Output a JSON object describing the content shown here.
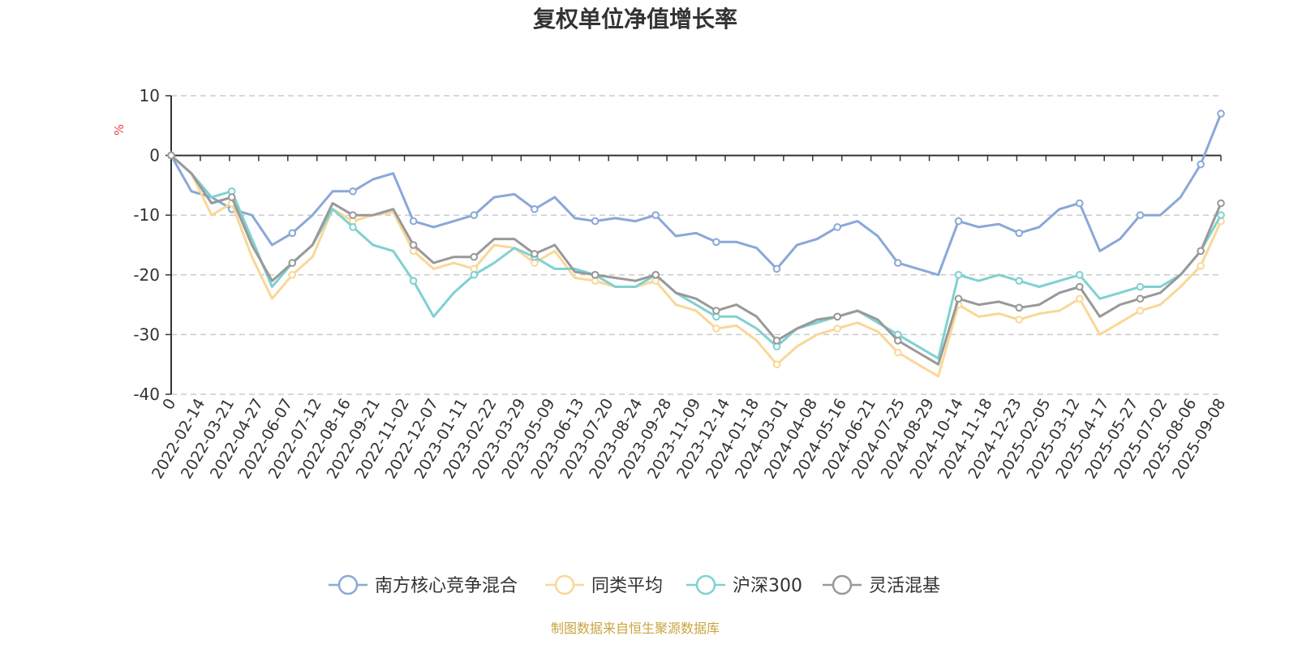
{
  "chart_data": {
    "type": "line",
    "title": "复权单位净值增长率",
    "y_unit": "%",
    "ylim": [
      -40,
      10
    ],
    "y_ticks": [
      10,
      0,
      -10,
      -20,
      -30,
      -40
    ],
    "grid": "horizontal-dashed",
    "legend_position": "bottom",
    "x_origin_label": "0",
    "x_ticks": [
      "2022-02-14",
      "2022-03-21",
      "2022-04-27",
      "2022-06-07",
      "2022-07-12",
      "2022-08-16",
      "2022-09-21",
      "2022-11-02",
      "2022-12-07",
      "2023-01-11",
      "2023-02-22",
      "2023-03-29",
      "2023-05-09",
      "2023-06-13",
      "2023-07-20",
      "2023-08-24",
      "2023-09-28",
      "2023-11-09",
      "2023-12-14",
      "2024-01-18",
      "2024-03-01",
      "2024-04-08",
      "2024-05-16",
      "2024-06-21",
      "2024-07-25",
      "2024-08-29",
      "2024-10-14",
      "2024-11-18",
      "2024-12-23",
      "2025-02-05",
      "2025-03-12",
      "2025-04-17",
      "2025-05-27",
      "2025-07-02",
      "2025-08-06",
      "2025-09-08"
    ],
    "series": [
      {
        "name": "南方核心竞争混合",
        "color": "#8aa8d8",
        "values": [
          0,
          -6,
          -7,
          -9,
          -10,
          -15,
          -13,
          -10,
          -6,
          -6,
          -4,
          -3,
          -11,
          -12,
          -11,
          -10,
          -7,
          -6.5,
          -9,
          -7,
          -10.5,
          -11,
          -10.5,
          -11,
          -10,
          -13.5,
          -13,
          -14.5,
          -14.5,
          -15.5,
          -19,
          -15,
          -14,
          -12,
          -11,
          -13.5,
          -18,
          -19,
          -20,
          -11,
          -12,
          -11.5,
          -13,
          -12,
          -9,
          -8,
          -16,
          -14,
          -10,
          -10,
          -7,
          -1.5,
          7
        ]
      },
      {
        "name": "同类平均",
        "color": "#fad797",
        "values": [
          0,
          -3,
          -10,
          -8,
          -17,
          -24,
          -20,
          -17,
          -9,
          -11,
          -10,
          -9.5,
          -16,
          -19,
          -18,
          -19,
          -15,
          -15.5,
          -18,
          -16,
          -20.5,
          -21,
          -22,
          -22,
          -21,
          -25,
          -26,
          -29,
          -28.5,
          -31,
          -35,
          -32,
          -30,
          -29,
          -28,
          -29.5,
          -33,
          -35,
          -37,
          -25,
          -27,
          -26.5,
          -27.5,
          -26.5,
          -26,
          -24,
          -30,
          -28,
          -26,
          -25,
          -22,
          -18.5,
          -11
        ]
      },
      {
        "name": "沪深300",
        "color": "#7fd1d1",
        "values": [
          0,
          -3,
          -7,
          -6,
          -14,
          -22,
          -18,
          -15,
          -9,
          -12,
          -15,
          -16,
          -21,
          -27,
          -23,
          -20,
          -18,
          -15.5,
          -17,
          -19,
          -19,
          -20,
          -22,
          -22,
          -20,
          -23,
          -25,
          -27,
          -27,
          -29,
          -32,
          -29,
          -28,
          -27,
          -26,
          -28,
          -30,
          -32,
          -34,
          -20,
          -21,
          -20,
          -21,
          -22,
          -21,
          -20,
          -24,
          -23,
          -22,
          -22,
          -20,
          -16,
          -10
        ]
      },
      {
        "name": "灵活混基",
        "color": "#999999",
        "values": [
          0,
          -3,
          -8,
          -7,
          -15,
          -21,
          -18,
          -15,
          -8,
          -10,
          -10,
          -9,
          -15,
          -18,
          -17,
          -17,
          -14,
          -14,
          -16.5,
          -15,
          -19.5,
          -20,
          -20.5,
          -21,
          -20,
          -23,
          -24,
          -26,
          -25,
          -27,
          -31,
          -29,
          -27.5,
          -27,
          -26,
          -27.5,
          -31,
          -33,
          -35,
          -24,
          -25,
          -24.5,
          -25.5,
          -25,
          -23,
          -22,
          -27,
          -25,
          -24,
          -23,
          -20,
          -16,
          -8
        ]
      }
    ]
  },
  "footer": {
    "source_text": "制图数据来自恒生聚源数据库"
  }
}
